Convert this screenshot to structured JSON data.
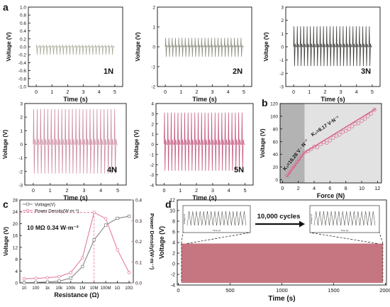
{
  "colors": {
    "n1": "#a9ad9c",
    "n2": "#8a8d7e",
    "n3": "#3e3f3b",
    "n4": "#cd8ca2",
    "n5": "#c55a81",
    "fit": "#d8678d",
    "voltage_series": "#7a7a7a",
    "power_series": "#e0709a",
    "band": "#c67680",
    "dark_region": "#b3b3b3",
    "light_region": "#e2e2e2",
    "axis": "#111111"
  },
  "panel_labels": {
    "a": "a",
    "b": "b",
    "c": "c",
    "d": "d"
  },
  "chart_data": [
    {
      "panel": "a1",
      "type": "line",
      "force_label": "1N",
      "xlabel": "Time (s)",
      "ylabel": "Voltage (V)",
      "xlim": [
        -0.5,
        5.5
      ],
      "ylim": [
        -1,
        1
      ],
      "xticks": [
        "0",
        "1",
        "2",
        "3",
        "4",
        "5"
      ],
      "yticks": [
        "-1.0",
        "-0.8",
        "-0.6",
        "-0.4",
        "-0.2",
        "0.0",
        "0.2",
        "0.4",
        "0.6",
        "0.8",
        "1.0"
      ],
      "signal": {
        "t_start": 0,
        "t_end": 5,
        "cycles": 24,
        "peak_max": 0.05,
        "peak_min": -0.2
      }
    },
    {
      "panel": "a2",
      "type": "line",
      "force_label": "2N",
      "xlabel": "Time (s)",
      "ylabel": "Voltage (V)",
      "xlim": [
        -0.5,
        5.5
      ],
      "ylim": [
        -2,
        2
      ],
      "xticks": [
        "0",
        "1",
        "2",
        "3",
        "4",
        "5"
      ],
      "yticks": [
        "-2",
        "-1",
        "0",
        "1",
        "2"
      ],
      "signal": {
        "t_start": 0,
        "t_end": 5,
        "cycles": 24,
        "peak_max": 0.45,
        "peak_min": -0.5
      }
    },
    {
      "panel": "a3",
      "type": "line",
      "force_label": "3N",
      "xlabel": "Time (s)",
      "ylabel": "Voltage (V)",
      "xlim": [
        -0.5,
        5.5
      ],
      "ylim": [
        -3,
        3
      ],
      "xticks": [
        "0",
        "1",
        "2",
        "3",
        "4",
        "5"
      ],
      "yticks": [
        "-3",
        "-2",
        "-1",
        "0",
        "1",
        "2",
        "3"
      ],
      "signal": {
        "t_start": 0,
        "t_end": 5,
        "cycles": 24,
        "peak_max": 1.55,
        "peak_min": -1.45
      }
    },
    {
      "panel": "a4",
      "type": "line",
      "force_label": "4N",
      "xlabel": "Time (s)",
      "ylabel": "Voltage (V)",
      "xlim": [
        -0.5,
        5.5
      ],
      "ylim": [
        -3,
        3
      ],
      "xticks": [
        "0",
        "1",
        "2",
        "3",
        "4",
        "5"
      ],
      "yticks": [
        "-3",
        "-2",
        "-1",
        "0",
        "1",
        "2",
        "3"
      ],
      "signal": {
        "t_start": 0,
        "t_end": 5,
        "cycles": 24,
        "peak_max": 2.6,
        "peak_min": -2.15
      }
    },
    {
      "panel": "a5",
      "type": "line",
      "force_label": "5N",
      "xlabel": "Time (s)",
      "ylabel": "Voltage (V)",
      "xlim": [
        -0.5,
        5.5
      ],
      "ylim": [
        -4,
        4
      ],
      "xticks": [
        "0",
        "1",
        "2",
        "3",
        "4",
        "5"
      ],
      "yticks": [
        "-4",
        "-3",
        "-2",
        "-1",
        "0",
        "1",
        "2",
        "3",
        "4"
      ],
      "signal": {
        "t_start": 0,
        "t_end": 5,
        "cycles": 24,
        "peak_max": 3.1,
        "peak_min": -2.6
      }
    },
    {
      "panel": "b",
      "type": "scatter",
      "xlabel": "Force (N)",
      "ylabel": "Voltage (V)",
      "xlim": [
        -0.3,
        12.5
      ],
      "ylim": [
        -5,
        120
      ],
      "xticks": [
        0,
        2,
        4,
        6,
        8,
        10,
        12
      ],
      "yticks": [
        0,
        20,
        40,
        60,
        80,
        100,
        120
      ],
      "shaded_boundary": 2.8,
      "annotations": {
        "k1": "K₁=16.28 V · N⁻¹",
        "k2": "K₂=8.17 V·N⁻¹"
      },
      "points": [
        [
          0.6,
          7
        ],
        [
          0.9,
          12
        ],
        [
          1.2,
          18
        ],
        [
          1.5,
          22
        ],
        [
          1.8,
          28
        ],
        [
          2.1,
          33
        ],
        [
          2.4,
          38
        ],
        [
          2.8,
          43
        ],
        [
          3.2,
          45
        ],
        [
          3.6,
          48
        ],
        [
          4.0,
          52
        ],
        [
          4.4,
          51
        ],
        [
          4.8,
          56
        ],
        [
          5.2,
          59
        ],
        [
          5.6,
          58
        ],
        [
          6.0,
          62
        ],
        [
          6.4,
          66
        ],
        [
          6.8,
          69
        ],
        [
          7.2,
          71
        ],
        [
          7.6,
          75
        ],
        [
          8.0,
          77
        ],
        [
          8.4,
          80
        ],
        [
          8.8,
          84
        ],
        [
          9.2,
          88
        ],
        [
          9.6,
          89
        ],
        [
          10.0,
          93
        ],
        [
          10.4,
          96
        ],
        [
          10.8,
          100
        ],
        [
          11.2,
          104
        ],
        [
          11.6,
          110
        ]
      ],
      "fit_line": [
        [
          0.5,
          4
        ],
        [
          2.8,
          43
        ],
        [
          11.8,
          112
        ]
      ]
    },
    {
      "panel": "c",
      "type": "line",
      "xlabel": "Resistance (Ω)",
      "ylabel": "Voltage (V)",
      "ylabel_right": "Power Density(W·m⁻²)",
      "categories": [
        "10",
        "100",
        "1k",
        "10k",
        "100k",
        "1M",
        "10M",
        "100M",
        "1G",
        "10G"
      ],
      "ylim": [
        0,
        28
      ],
      "yticks": [
        0,
        4,
        8,
        12,
        16,
        20,
        24,
        28
      ],
      "ylim_right": [
        0,
        0.4
      ],
      "yticks_right": [
        "0.0",
        "0.1",
        "0.2",
        "0.3",
        "0.4"
      ],
      "series": [
        {
          "name": "Voltage(V)",
          "axis": "left",
          "values": [
            0.1,
            0.2,
            0.3,
            0.6,
            1.6,
            5.5,
            14.5,
            19.5,
            21.8,
            22.5
          ]
        },
        {
          "name": "Power Density(W·m⁻²)",
          "axis": "right",
          "values": [
            0.02,
            0.022,
            0.025,
            0.03,
            0.05,
            0.12,
            0.34,
            0.31,
            0.16,
            0.05
          ]
        }
      ],
      "annotation": "10 MΩ  0.34 W·m⁻²",
      "highlight": {
        "category": "10M",
        "value_right": 0.34
      }
    },
    {
      "panel": "d",
      "type": "line",
      "xlabel": "Time (s)",
      "ylabel": "Voltage (V)",
      "xlim": [
        -10,
        2010
      ],
      "ylim": [
        -4,
        12
      ],
      "xticks": [
        0,
        500,
        1000,
        1500,
        2000
      ],
      "yticks": [
        -4,
        -2,
        0,
        2,
        4,
        6,
        8,
        10,
        12
      ],
      "band": {
        "t_start": 30,
        "t_end": 1975,
        "upper": 3.8,
        "lower": -3.6
      },
      "arrow_label": "10,000 cycles",
      "inset_axes": {
        "xlabel": "Time (s)",
        "ylabel": "Voltage (V)"
      }
    }
  ]
}
